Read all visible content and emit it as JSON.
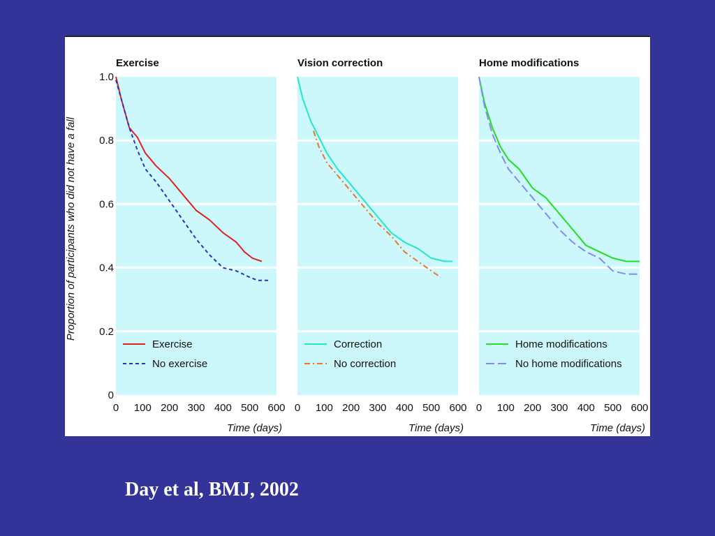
{
  "citation": "Day et al, BMJ, 2002",
  "colors": {
    "background": "#333399",
    "plot_area": "#ccf7fb",
    "gridline": "#ffffff",
    "citation_text": "#ffffff"
  },
  "chart_data": [
    {
      "type": "line",
      "title": "Exercise",
      "xlabel": "Time (days)",
      "ylabel": "Proportion of participants who did not have a fall",
      "xlim": [
        0,
        600
      ],
      "ylim": [
        0,
        1.0
      ],
      "x_ticks": [
        "0",
        "100",
        "200",
        "300",
        "400",
        "500",
        "600"
      ],
      "y_ticks": [
        "0",
        "0.2",
        "0.4",
        "0.6",
        "0.8",
        "1.0"
      ],
      "grid": true,
      "legend_position": "bottom-left",
      "series": [
        {
          "name": "Exercise",
          "color": "#dd2222",
          "dash": "solid",
          "points": [
            [
              0,
              1.0
            ],
            [
              20,
              0.93
            ],
            [
              50,
              0.84
            ],
            [
              80,
              0.81
            ],
            [
              110,
              0.76
            ],
            [
              150,
              0.72
            ],
            [
              200,
              0.68
            ],
            [
              250,
              0.63
            ],
            [
              300,
              0.58
            ],
            [
              350,
              0.55
            ],
            [
              400,
              0.51
            ],
            [
              450,
              0.48
            ],
            [
              480,
              0.45
            ],
            [
              510,
              0.43
            ],
            [
              545,
              0.42
            ]
          ]
        },
        {
          "name": "No exercise",
          "color": "#2233cc",
          "dash": "dashed",
          "points": [
            [
              0,
              0.99
            ],
            [
              20,
              0.93
            ],
            [
              50,
              0.84
            ],
            [
              80,
              0.77
            ],
            [
              110,
              0.71
            ],
            [
              150,
              0.67
            ],
            [
              200,
              0.61
            ],
            [
              250,
              0.55
            ],
            [
              300,
              0.49
            ],
            [
              350,
              0.44
            ],
            [
              400,
              0.4
            ],
            [
              450,
              0.39
            ],
            [
              500,
              0.37
            ],
            [
              530,
              0.36
            ],
            [
              570,
              0.36
            ]
          ]
        }
      ]
    },
    {
      "type": "line",
      "title": "Vision correction",
      "xlabel": "Time (days)",
      "xlim": [
        0,
        600
      ],
      "ylim": [
        0,
        1.0
      ],
      "x_ticks": [
        "0",
        "100",
        "200",
        "300",
        "400",
        "500",
        "600"
      ],
      "grid": true,
      "legend_position": "bottom-left",
      "series": [
        {
          "name": "Correction",
          "color": "#22e8c8",
          "dash": "solid",
          "points": [
            [
              0,
              1.0
            ],
            [
              20,
              0.93
            ],
            [
              50,
              0.86
            ],
            [
              80,
              0.81
            ],
            [
              110,
              0.76
            ],
            [
              150,
              0.71
            ],
            [
              200,
              0.66
            ],
            [
              250,
              0.61
            ],
            [
              300,
              0.56
            ],
            [
              350,
              0.51
            ],
            [
              400,
              0.48
            ],
            [
              450,
              0.46
            ],
            [
              500,
              0.43
            ],
            [
              550,
              0.42
            ],
            [
              580,
              0.42
            ]
          ]
        },
        {
          "name": "No correction",
          "color": "#ee7722",
          "dash": "dashdot",
          "points": [
            [
              60,
              0.83
            ],
            [
              80,
              0.78
            ],
            [
              110,
              0.73
            ],
            [
              150,
              0.69
            ],
            [
              200,
              0.64
            ],
            [
              250,
              0.59
            ],
            [
              300,
              0.54
            ],
            [
              350,
              0.5
            ],
            [
              400,
              0.45
            ],
            [
              450,
              0.42
            ],
            [
              500,
              0.39
            ],
            [
              535,
              0.37
            ]
          ]
        }
      ]
    },
    {
      "type": "line",
      "title": "Home modifications",
      "xlabel": "Time (days)",
      "xlim": [
        0,
        600
      ],
      "ylim": [
        0,
        1.0
      ],
      "x_ticks": [
        "0",
        "100",
        "200",
        "300",
        "400",
        "500",
        "600"
      ],
      "grid": true,
      "legend_position": "bottom-left",
      "series": [
        {
          "name": "Home modifications",
          "color": "#22dd22",
          "dash": "solid",
          "points": [
            [
              0,
              1.0
            ],
            [
              20,
              0.92
            ],
            [
              50,
              0.84
            ],
            [
              80,
              0.78
            ],
            [
              110,
              0.74
            ],
            [
              150,
              0.71
            ],
            [
              200,
              0.65
            ],
            [
              250,
              0.62
            ],
            [
              300,
              0.57
            ],
            [
              350,
              0.52
            ],
            [
              400,
              0.47
            ],
            [
              450,
              0.45
            ],
            [
              500,
              0.43
            ],
            [
              550,
              0.42
            ],
            [
              600,
              0.42
            ]
          ]
        },
        {
          "name": "No home modifications",
          "color": "#8888ee",
          "dash": "longdash",
          "points": [
            [
              0,
              1.0
            ],
            [
              20,
              0.91
            ],
            [
              50,
              0.82
            ],
            [
              80,
              0.76
            ],
            [
              110,
              0.71
            ],
            [
              150,
              0.67
            ],
            [
              200,
              0.62
            ],
            [
              250,
              0.57
            ],
            [
              300,
              0.52
            ],
            [
              350,
              0.48
            ],
            [
              400,
              0.45
            ],
            [
              450,
              0.43
            ],
            [
              500,
              0.39
            ],
            [
              550,
              0.38
            ],
            [
              600,
              0.38
            ]
          ]
        }
      ]
    }
  ]
}
